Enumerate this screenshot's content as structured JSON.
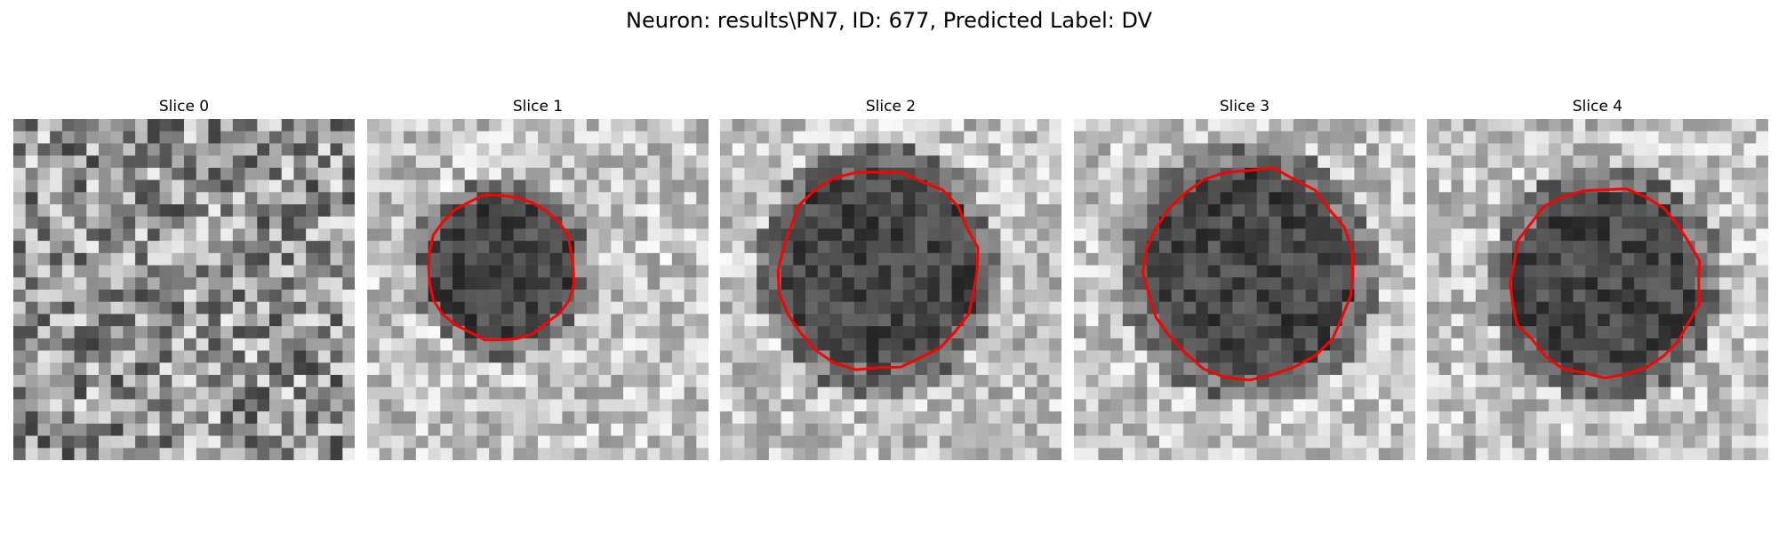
{
  "figure": {
    "title": "Neuron: results\\PN7, ID: 677, Predicted Label: DV"
  },
  "panels": [
    {
      "title": "Slice 0",
      "has_contour": false,
      "seed": 11,
      "dark_fraction": 0.0
    },
    {
      "title": "Slice 1",
      "has_contour": true,
      "seed": 23,
      "dark_fraction": 0.75
    },
    {
      "title": "Slice 2",
      "has_contour": true,
      "seed": 37,
      "dark_fraction": 0.8
    },
    {
      "title": "Slice 3",
      "has_contour": true,
      "seed": 51,
      "dark_fraction": 0.7
    },
    {
      "title": "Slice 4",
      "has_contour": true,
      "seed": 67,
      "dark_fraction": 0.75
    }
  ],
  "colors": {
    "contour": "#ff0000",
    "background": "#ffffff"
  },
  "image": {
    "colormap": "gray",
    "grid_size": 28
  }
}
